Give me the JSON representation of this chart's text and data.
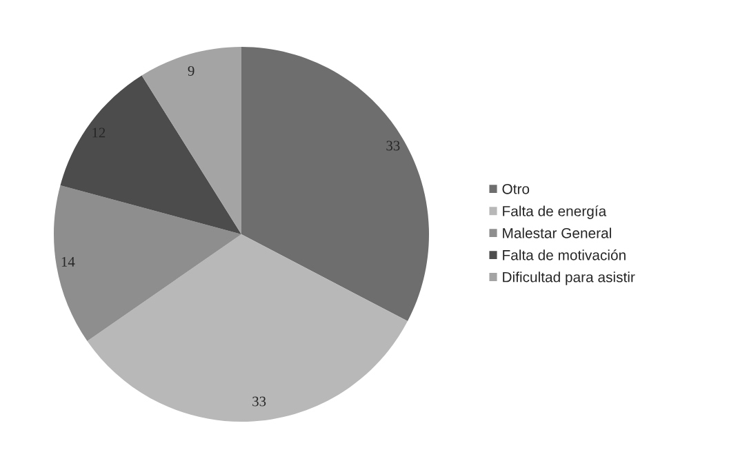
{
  "chart_data": {
    "type": "pie",
    "categories": [
      "Otro",
      "Falta de energía",
      "Malestar General",
      "Falta de motivación",
      "Dificultad para asistir"
    ],
    "values": [
      33,
      33,
      14,
      12,
      9
    ],
    "colors": [
      "#6e6e6e",
      "#b8b8b8",
      "#8e8e8e",
      "#4c4c4c",
      "#a4a4a4"
    ],
    "data_labels": true,
    "legend": "right"
  }
}
